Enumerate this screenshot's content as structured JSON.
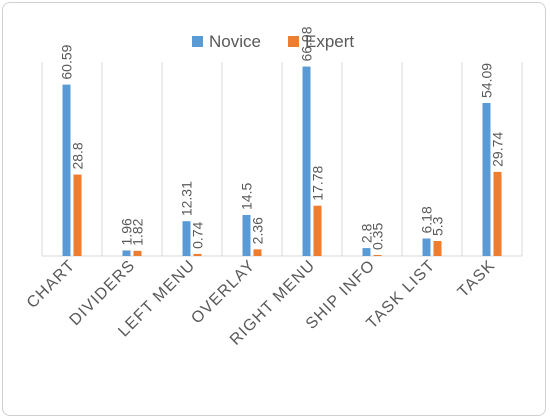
{
  "chart_data": {
    "type": "bar",
    "title": "",
    "xlabel": "",
    "ylabel": "",
    "categories": [
      "CHART",
      "DIVIDERS",
      "LEFT MENU",
      "OVERLAY",
      "RIGHT MENU",
      "SHIP INFO",
      "TASK LIST",
      "TASK"
    ],
    "series": [
      {
        "name": "Novice",
        "color": "#5b9bd5",
        "values": [
          60.59,
          1.96,
          12.31,
          14.5,
          66.98,
          2.8,
          6.18,
          54.09
        ]
      },
      {
        "name": "Expert",
        "color": "#ed7d31",
        "values": [
          28.8,
          1.82,
          0.74,
          2.36,
          17.78,
          0.35,
          5.3,
          29.74
        ]
      }
    ],
    "value_labels": [
      [
        "60.59",
        "1.96",
        "12.31",
        "14.5",
        "66.98",
        "2.8",
        "6.18",
        "54.09"
      ],
      [
        "28.8",
        "1.82",
        "0.74",
        "2.36",
        "17.78",
        "0.35",
        "5.3",
        "29.74"
      ]
    ],
    "ylim": [
      0,
      70
    ],
    "grid": false,
    "legend_position": "top-center",
    "category_separators": true
  }
}
